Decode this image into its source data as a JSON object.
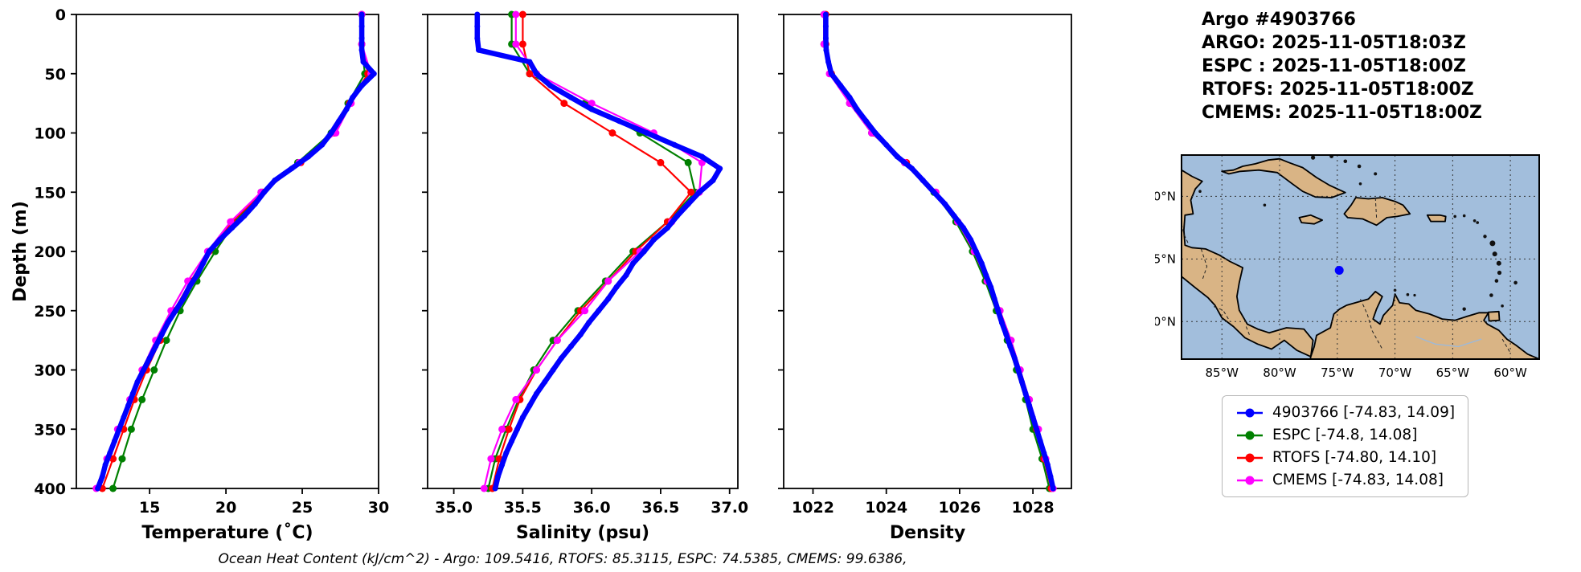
{
  "info": {
    "title": "Argo #4903766",
    "lines": [
      "ARGO: 2025-11-05T18:03Z",
      "ESPC : 2025-11-05T18:00Z",
      "RTOFS: 2025-11-05T18:00Z",
      "CMEMS: 2025-11-05T18:00Z"
    ]
  },
  "caption": "Ocean Heat Content (kJ/cm^2) - Argo: 109.5416,  RTOFS: 85.3115,  ESPC: 74.5385,  CMEMS: 99.6386,",
  "colors": {
    "argo": "#0000ff",
    "espc": "#008000",
    "rtofs": "#ff0000",
    "cmems": "#ff00ff",
    "ocean": "#a2bedc",
    "land": "#d9b485",
    "float_dot": "#0000ff"
  },
  "legend": {
    "items": [
      {
        "label": "4903766 [-74.83, 14.09]",
        "color": "#0000ff"
      },
      {
        "label": "ESPC [-74.8, 14.08]",
        "color": "#008000"
      },
      {
        "label": "RTOFS [-74.80, 14.10]",
        "color": "#ff0000"
      },
      {
        "label": "CMEMS [-74.83, 14.08]",
        "color": "#ff00ff"
      }
    ]
  },
  "map": {
    "xtick_labels": [
      "85°W",
      "80°W",
      "75°W",
      "70°W",
      "65°W",
      "60°W"
    ],
    "ytick_labels": [
      "20°N",
      "15°N",
      "10°N"
    ],
    "lon_ticks": [
      -85,
      -80,
      -75,
      -70,
      -65,
      -60
    ],
    "lat_ticks": [
      20,
      15,
      10
    ],
    "lon_range": [
      -88.5,
      -57.5
    ],
    "lat_range": [
      7,
      23.3
    ],
    "float_lon": -74.83,
    "float_lat": 14.09
  },
  "chart_data": [
    {
      "type": "line",
      "key": "temperature",
      "xlabel": "Temperature (˚C)",
      "ylabel": "Depth (m)",
      "xlim": [
        10.2,
        30
      ],
      "ylim": [
        400,
        0
      ],
      "xticks": [
        15,
        20,
        25,
        30
      ],
      "xtick_labels": [
        "15",
        "20",
        "25",
        "30"
      ],
      "yticks": [
        0,
        50,
        100,
        150,
        200,
        250,
        300,
        350,
        400
      ],
      "series": [
        {
          "name": "4903766",
          "color": "#0000ff",
          "lw": 6.5,
          "marker_r": 3.5,
          "depth": [
            0,
            10,
            20,
            30,
            40,
            50,
            60,
            70,
            80,
            90,
            100,
            110,
            120,
            130,
            140,
            150,
            160,
            170,
            180,
            190,
            200,
            210,
            220,
            230,
            240,
            250,
            260,
            270,
            280,
            290,
            300,
            310,
            320,
            330,
            340,
            350,
            360,
            370,
            380,
            390,
            400
          ],
          "values": [
            28.9,
            28.9,
            28.9,
            28.9,
            29.0,
            29.7,
            28.9,
            28.3,
            27.9,
            27.4,
            26.9,
            26.3,
            25.4,
            24.3,
            23.2,
            22.5,
            21.9,
            21.2,
            20.4,
            19.6,
            18.9,
            18.5,
            18.1,
            17.6,
            17.2,
            16.7,
            16.2,
            15.8,
            15.4,
            15.0,
            14.6,
            14.2,
            13.9,
            13.6,
            13.3,
            13.0,
            12.7,
            12.4,
            12.1,
            11.9,
            11.6
          ]
        },
        {
          "name": "ESPC",
          "color": "#008000",
          "lw": 2.2,
          "marker_r": 4.5,
          "depth": [
            0,
            25,
            50,
            75,
            100,
            125,
            150,
            175,
            200,
            225,
            250,
            275,
            300,
            325,
            350,
            375,
            400
          ],
          "values": [
            28.9,
            28.9,
            29.1,
            28.0,
            26.9,
            24.7,
            22.3,
            20.6,
            19.3,
            18.1,
            17.0,
            16.1,
            15.3,
            14.5,
            13.8,
            13.2,
            12.6
          ]
        },
        {
          "name": "RTOFS",
          "color": "#ff0000",
          "lw": 2.2,
          "marker_r": 4.5,
          "depth": [
            0,
            25,
            50,
            75,
            100,
            125,
            150,
            175,
            200,
            225,
            250,
            275,
            300,
            325,
            350,
            375,
            400
          ],
          "values": [
            28.9,
            28.9,
            29.3,
            28.1,
            27.1,
            24.9,
            22.4,
            20.4,
            18.9,
            17.7,
            16.6,
            15.7,
            14.8,
            14.0,
            13.3,
            12.6,
            11.9
          ]
        },
        {
          "name": "CMEMS",
          "color": "#ff00ff",
          "lw": 2.2,
          "marker_r": 4.5,
          "depth": [
            0,
            25,
            50,
            75,
            100,
            125,
            150,
            175,
            200,
            225,
            250,
            275,
            300,
            325,
            350,
            375,
            400
          ],
          "values": [
            28.9,
            28.9,
            29.5,
            28.2,
            27.2,
            24.8,
            22.3,
            20.3,
            18.8,
            17.5,
            16.4,
            15.4,
            14.5,
            13.7,
            12.9,
            12.2,
            11.5
          ]
        }
      ]
    },
    {
      "type": "line",
      "key": "salinity",
      "xlabel": "Salinity (psu)",
      "ylabel": "Depth (m)",
      "xlim": [
        34.81,
        37.06
      ],
      "ylim": [
        400,
        0
      ],
      "xticks": [
        35.0,
        35.5,
        36.0,
        36.5,
        37.0
      ],
      "xtick_labels": [
        "35.0",
        "35.5",
        "36.0",
        "36.5",
        "37.0"
      ],
      "yticks": [
        0,
        50,
        100,
        150,
        200,
        250,
        300,
        350,
        400
      ],
      "series": [
        {
          "name": "4903766",
          "color": "#0000ff",
          "lw": 6.5,
          "marker_r": 3.5,
          "depth": [
            0,
            10,
            20,
            30,
            40,
            50,
            60,
            70,
            80,
            90,
            100,
            110,
            120,
            130,
            140,
            150,
            160,
            170,
            180,
            190,
            200,
            210,
            220,
            230,
            240,
            250,
            260,
            270,
            280,
            290,
            300,
            310,
            320,
            330,
            340,
            350,
            360,
            370,
            380,
            390,
            400
          ],
          "values": [
            35.17,
            35.17,
            35.17,
            35.18,
            35.55,
            35.6,
            35.7,
            35.85,
            36.0,
            36.2,
            36.4,
            36.6,
            36.8,
            36.93,
            36.88,
            36.78,
            36.7,
            36.62,
            36.55,
            36.45,
            36.38,
            36.3,
            36.25,
            36.18,
            36.12,
            36.05,
            35.98,
            35.92,
            35.85,
            35.78,
            35.72,
            35.66,
            35.6,
            35.55,
            35.5,
            35.46,
            35.42,
            35.38,
            35.35,
            35.32,
            35.3
          ]
        },
        {
          "name": "ESPC",
          "color": "#008000",
          "lw": 2.2,
          "marker_r": 4.5,
          "depth": [
            0,
            25,
            50,
            75,
            100,
            125,
            150,
            175,
            200,
            225,
            250,
            275,
            300,
            325,
            350,
            375,
            400
          ],
          "values": [
            35.42,
            35.42,
            35.55,
            35.95,
            36.35,
            36.7,
            36.75,
            36.55,
            36.3,
            36.1,
            35.9,
            35.72,
            35.58,
            35.47,
            35.38,
            35.3,
            35.25
          ]
        },
        {
          "name": "RTOFS",
          "color": "#ff0000",
          "lw": 2.2,
          "marker_r": 4.5,
          "depth": [
            0,
            25,
            50,
            75,
            100,
            125,
            150,
            175,
            200,
            225,
            250,
            275,
            300,
            325,
            350,
            375,
            400
          ],
          "values": [
            35.5,
            35.5,
            35.55,
            35.8,
            36.15,
            36.5,
            36.72,
            36.55,
            36.32,
            36.12,
            35.92,
            35.75,
            35.6,
            35.48,
            35.4,
            35.33,
            35.28
          ]
        },
        {
          "name": "CMEMS",
          "color": "#ff00ff",
          "lw": 2.2,
          "marker_r": 4.5,
          "depth": [
            0,
            25,
            50,
            75,
            100,
            125,
            150,
            175,
            200,
            225,
            250,
            275,
            300,
            325,
            350,
            375,
            400
          ],
          "values": [
            35.45,
            35.45,
            35.6,
            36.0,
            36.45,
            36.8,
            36.78,
            36.58,
            36.35,
            36.12,
            35.95,
            35.75,
            35.6,
            35.45,
            35.35,
            35.27,
            35.22
          ]
        }
      ]
    },
    {
      "type": "line",
      "key": "density",
      "xlabel": "Density",
      "ylabel": "Depth (m)",
      "xlim": [
        1021.2,
        1029.05
      ],
      "ylim": [
        400,
        0
      ],
      "xticks": [
        1022,
        1024,
        1026,
        1028
      ],
      "xtick_labels": [
        "1022",
        "1024",
        "1026",
        "1028"
      ],
      "yticks": [
        0,
        50,
        100,
        150,
        200,
        250,
        300,
        350,
        400
      ],
      "series": [
        {
          "name": "4903766",
          "color": "#0000ff",
          "lw": 6.5,
          "marker_r": 3.5,
          "depth": [
            0,
            10,
            20,
            30,
            40,
            50,
            60,
            70,
            80,
            90,
            100,
            110,
            120,
            130,
            140,
            150,
            160,
            170,
            180,
            190,
            200,
            210,
            220,
            230,
            240,
            250,
            260,
            270,
            280,
            290,
            300,
            310,
            320,
            330,
            340,
            350,
            360,
            370,
            380,
            390,
            400
          ],
          "values": [
            1022.35,
            1022.35,
            1022.35,
            1022.36,
            1022.42,
            1022.5,
            1022.75,
            1023.0,
            1023.2,
            1023.45,
            1023.7,
            1024.0,
            1024.3,
            1024.7,
            1025.0,
            1025.3,
            1025.6,
            1025.85,
            1026.1,
            1026.3,
            1026.45,
            1026.6,
            1026.72,
            1026.85,
            1026.95,
            1027.05,
            1027.15,
            1027.27,
            1027.38,
            1027.5,
            1027.6,
            1027.7,
            1027.8,
            1027.9,
            1028.0,
            1028.1,
            1028.2,
            1028.3,
            1028.4,
            1028.48,
            1028.55
          ]
        },
        {
          "name": "ESPC",
          "color": "#008000",
          "lw": 2.2,
          "marker_r": 4.5,
          "depth": [
            0,
            25,
            50,
            75,
            100,
            125,
            150,
            175,
            200,
            225,
            250,
            275,
            300,
            325,
            350,
            375,
            400
          ],
          "values": [
            1022.3,
            1022.3,
            1022.5,
            1023.0,
            1023.6,
            1024.5,
            1025.3,
            1025.9,
            1026.35,
            1026.7,
            1027.0,
            1027.3,
            1027.55,
            1027.8,
            1028.0,
            1028.25,
            1028.45
          ]
        },
        {
          "name": "RTOFS",
          "color": "#ff0000",
          "lw": 2.2,
          "marker_r": 4.5,
          "depth": [
            0,
            25,
            50,
            75,
            100,
            125,
            150,
            175,
            200,
            225,
            250,
            275,
            300,
            325,
            350,
            375,
            400
          ],
          "values": [
            1022.35,
            1022.35,
            1022.5,
            1023.05,
            1023.65,
            1024.55,
            1025.35,
            1025.95,
            1026.4,
            1026.75,
            1027.1,
            1027.4,
            1027.65,
            1027.9,
            1028.1,
            1028.3,
            1028.5
          ]
        },
        {
          "name": "CMEMS",
          "color": "#ff00ff",
          "lw": 2.2,
          "marker_r": 4.5,
          "depth": [
            0,
            25,
            50,
            75,
            100,
            125,
            150,
            175,
            200,
            225,
            250,
            275,
            300,
            325,
            350,
            375,
            400
          ],
          "values": [
            1022.3,
            1022.3,
            1022.45,
            1023.0,
            1023.6,
            1024.5,
            1025.35,
            1025.95,
            1026.4,
            1026.75,
            1027.1,
            1027.4,
            1027.65,
            1027.9,
            1028.15,
            1028.35,
            1028.55
          ]
        }
      ]
    }
  ]
}
